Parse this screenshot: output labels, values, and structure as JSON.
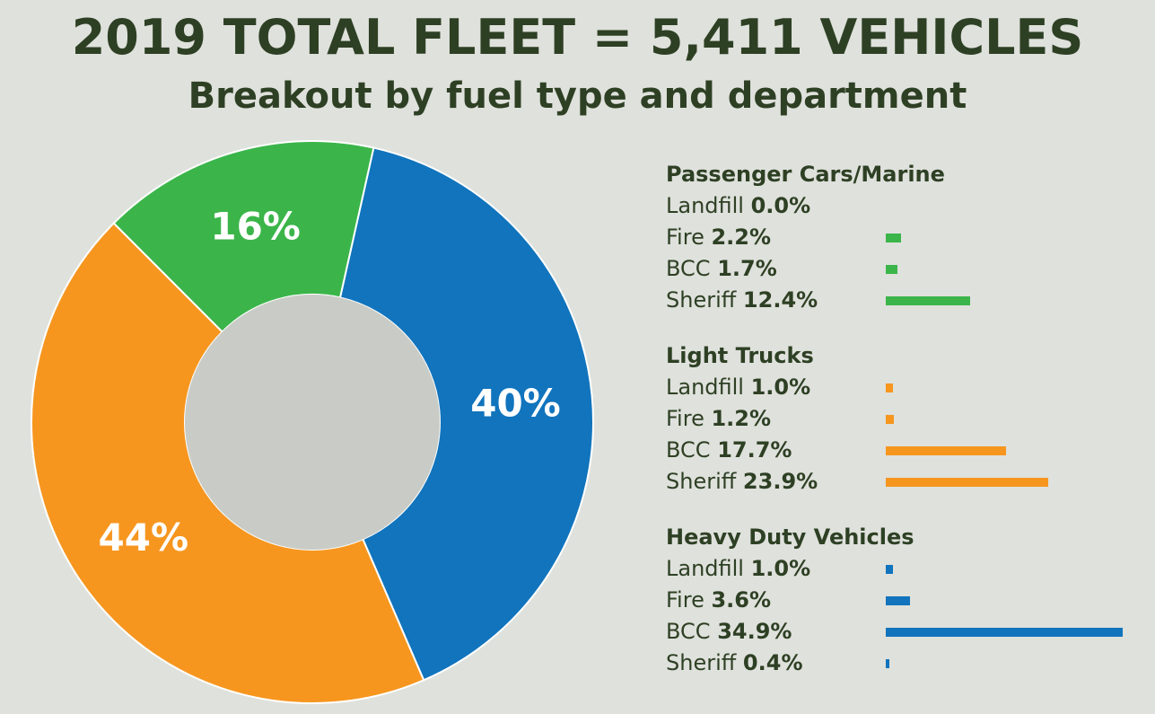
{
  "title": "2019 TOTAL FLEET = 5,411 VEHICLES",
  "subtitle": "Breakout by fuel type and department",
  "colors": {
    "green": "#3bb54a",
    "blue": "#1174bd",
    "orange": "#f6961f",
    "center": "#c9ccc6",
    "text": "#2e4024"
  },
  "chart_data": [
    {
      "type": "pie",
      "slices": [
        {
          "label": "16%",
          "value": 16,
          "color": "#3bb54a"
        },
        {
          "label": "40%",
          "value": 40,
          "color": "#1174bd"
        },
        {
          "label": "44%",
          "value": 44,
          "color": "#f6961f"
        }
      ]
    },
    {
      "type": "bar",
      "groups": [
        {
          "title": "Passenger Cars/Marine",
          "color": "#3bb54a",
          "rows": [
            {
              "name": "Landfill",
              "pct_text": "0.0%",
              "value": 0.0
            },
            {
              "name": "Fire",
              "pct_text": "2.2%",
              "value": 2.2
            },
            {
              "name": "BCC",
              "pct_text": "1.7%",
              "value": 1.7
            },
            {
              "name": "Sheriff",
              "pct_text": "12.4%",
              "value": 12.4
            }
          ]
        },
        {
          "title": "Light Trucks",
          "color": "#f6961f",
          "rows": [
            {
              "name": "Landfill",
              "pct_text": "1.0%",
              "value": 1.0
            },
            {
              "name": "Fire",
              "pct_text": "1.2%",
              "value": 1.2
            },
            {
              "name": "BCC",
              "pct_text": "17.7%",
              "value": 17.7
            },
            {
              "name": "Sheriff",
              "pct_text": "23.9%",
              "value": 23.9
            }
          ]
        },
        {
          "title": "Heavy Duty Vehicles",
          "color": "#1174bd",
          "rows": [
            {
              "name": "Landfill",
              "pct_text": "1.0%",
              "value": 1.0
            },
            {
              "name": "Fire",
              "pct_text": "3.6%",
              "value": 3.6
            },
            {
              "name": "BCC",
              "pct_text": "34.9%",
              "value": 34.9
            },
            {
              "name": "Sheriff",
              "pct_text": "0.4%",
              "value": 0.4
            }
          ]
        }
      ]
    }
  ]
}
